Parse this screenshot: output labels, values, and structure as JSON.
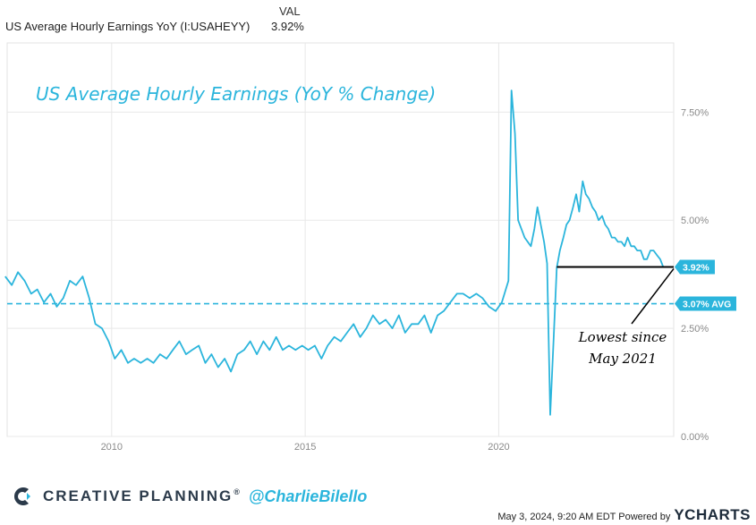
{
  "legend": {
    "header": "VAL",
    "series_name": "US Average Hourly Earnings YoY (I:USAHEYY)",
    "series_value": "3.92%"
  },
  "chart_data": {
    "type": "line",
    "title": "US Average Hourly Earnings (YoY % Change)",
    "xlabel": "",
    "ylabel": "",
    "x_tick_labels": [
      "2010",
      "2015",
      "2020"
    ],
    "x_ticks": [
      2010,
      2015,
      2020
    ],
    "y_tick_labels": [
      "0.00%",
      "2.50%",
      "5.00%",
      "7.50%"
    ],
    "y_ticks": [
      0,
      2.5,
      5,
      7.5
    ],
    "ylim": [
      0,
      9.1
    ],
    "xlim": [
      2007.3,
      2024.52
    ],
    "average_value": 3.07,
    "average_label": "3.07% AVG",
    "last_value_label": "3.92%",
    "last_value": 3.92,
    "annotation": "Lowest since May 2021",
    "annotation_lines": [
      "Lowest since",
      "May 2021"
    ],
    "series": [
      {
        "name": "US Average Hourly Earnings YoY (I:USAHEYY)",
        "color": "#2bb5dc",
        "points": [
          [
            2007.25,
            3.7
          ],
          [
            2007.42,
            3.5
          ],
          [
            2007.58,
            3.8
          ],
          [
            2007.75,
            3.6
          ],
          [
            2007.92,
            3.3
          ],
          [
            2008.08,
            3.4
          ],
          [
            2008.25,
            3.1
          ],
          [
            2008.42,
            3.3
          ],
          [
            2008.58,
            3.0
          ],
          [
            2008.75,
            3.2
          ],
          [
            2008.92,
            3.6
          ],
          [
            2009.08,
            3.5
          ],
          [
            2009.25,
            3.7
          ],
          [
            2009.42,
            3.2
          ],
          [
            2009.58,
            2.6
          ],
          [
            2009.75,
            2.5
          ],
          [
            2009.92,
            2.2
          ],
          [
            2010.08,
            1.8
          ],
          [
            2010.25,
            2.0
          ],
          [
            2010.42,
            1.7
          ],
          [
            2010.58,
            1.8
          ],
          [
            2010.75,
            1.7
          ],
          [
            2010.92,
            1.8
          ],
          [
            2011.08,
            1.7
          ],
          [
            2011.25,
            1.9
          ],
          [
            2011.42,
            1.8
          ],
          [
            2011.58,
            2.0
          ],
          [
            2011.75,
            2.2
          ],
          [
            2011.92,
            1.9
          ],
          [
            2012.08,
            2.0
          ],
          [
            2012.25,
            2.1
          ],
          [
            2012.42,
            1.7
          ],
          [
            2012.58,
            1.9
          ],
          [
            2012.75,
            1.6
          ],
          [
            2012.92,
            1.8
          ],
          [
            2013.08,
            1.5
          ],
          [
            2013.25,
            1.9
          ],
          [
            2013.42,
            2.0
          ],
          [
            2013.58,
            2.2
          ],
          [
            2013.75,
            1.9
          ],
          [
            2013.92,
            2.2
          ],
          [
            2014.08,
            2.0
          ],
          [
            2014.25,
            2.3
          ],
          [
            2014.42,
            2.0
          ],
          [
            2014.58,
            2.1
          ],
          [
            2014.75,
            2.0
          ],
          [
            2014.92,
            2.1
          ],
          [
            2015.08,
            2.0
          ],
          [
            2015.25,
            2.1
          ],
          [
            2015.42,
            1.8
          ],
          [
            2015.58,
            2.1
          ],
          [
            2015.75,
            2.3
          ],
          [
            2015.92,
            2.2
          ],
          [
            2016.08,
            2.4
          ],
          [
            2016.25,
            2.6
          ],
          [
            2016.42,
            2.3
          ],
          [
            2016.58,
            2.5
          ],
          [
            2016.75,
            2.8
          ],
          [
            2016.92,
            2.6
          ],
          [
            2017.08,
            2.7
          ],
          [
            2017.25,
            2.5
          ],
          [
            2017.42,
            2.8
          ],
          [
            2017.58,
            2.4
          ],
          [
            2017.75,
            2.6
          ],
          [
            2017.92,
            2.6
          ],
          [
            2018.08,
            2.8
          ],
          [
            2018.25,
            2.4
          ],
          [
            2018.42,
            2.8
          ],
          [
            2018.58,
            2.9
          ],
          [
            2018.75,
            3.1
          ],
          [
            2018.92,
            3.3
          ],
          [
            2019.08,
            3.3
          ],
          [
            2019.25,
            3.2
          ],
          [
            2019.42,
            3.3
          ],
          [
            2019.58,
            3.2
          ],
          [
            2019.75,
            3.0
          ],
          [
            2019.92,
            2.9
          ],
          [
            2020.08,
            3.1
          ],
          [
            2020.25,
            3.6
          ],
          [
            2020.33,
            8.0
          ],
          [
            2020.42,
            7.0
          ],
          [
            2020.5,
            5.0
          ],
          [
            2020.67,
            4.6
          ],
          [
            2020.83,
            4.4
          ],
          [
            2020.92,
            4.8
          ],
          [
            2021.0,
            5.3
          ],
          [
            2021.17,
            4.5
          ],
          [
            2021.25,
            4.0
          ],
          [
            2021.33,
            0.5
          ],
          [
            2021.42,
            2.3
          ],
          [
            2021.5,
            3.9
          ],
          [
            2021.58,
            4.3
          ],
          [
            2021.67,
            4.6
          ],
          [
            2021.75,
            4.9
          ],
          [
            2021.83,
            5.0
          ],
          [
            2021.92,
            5.3
          ],
          [
            2022.0,
            5.6
          ],
          [
            2022.08,
            5.2
          ],
          [
            2022.17,
            5.9
          ],
          [
            2022.25,
            5.6
          ],
          [
            2022.33,
            5.5
          ],
          [
            2022.42,
            5.3
          ],
          [
            2022.5,
            5.2
          ],
          [
            2022.58,
            5.0
          ],
          [
            2022.67,
            5.1
          ],
          [
            2022.75,
            4.9
          ],
          [
            2022.83,
            4.8
          ],
          [
            2022.92,
            4.6
          ],
          [
            2023.0,
            4.6
          ],
          [
            2023.08,
            4.5
          ],
          [
            2023.17,
            4.5
          ],
          [
            2023.25,
            4.4
          ],
          [
            2023.33,
            4.6
          ],
          [
            2023.42,
            4.4
          ],
          [
            2023.5,
            4.4
          ],
          [
            2023.58,
            4.3
          ],
          [
            2023.67,
            4.3
          ],
          [
            2023.75,
            4.1
          ],
          [
            2023.83,
            4.1
          ],
          [
            2023.92,
            4.3
          ],
          [
            2024.0,
            4.3
          ],
          [
            2024.08,
            4.2
          ],
          [
            2024.17,
            4.1
          ],
          [
            2024.25,
            3.92
          ]
        ]
      }
    ]
  },
  "footer": {
    "brand": "CREATIVE PLANNING",
    "brand_mark": "®",
    "handle": "@CharlieBilello",
    "timestamp": "May 3, 2024, 9:20 AM EDT Powered by",
    "provider": "YCHARTS"
  },
  "colors": {
    "line": "#2bb5dc",
    "grid": "#e8e8e8",
    "tick_text": "#8a8a8a",
    "label_bg": "#2bb5dc",
    "annotation_line": "#000000"
  }
}
